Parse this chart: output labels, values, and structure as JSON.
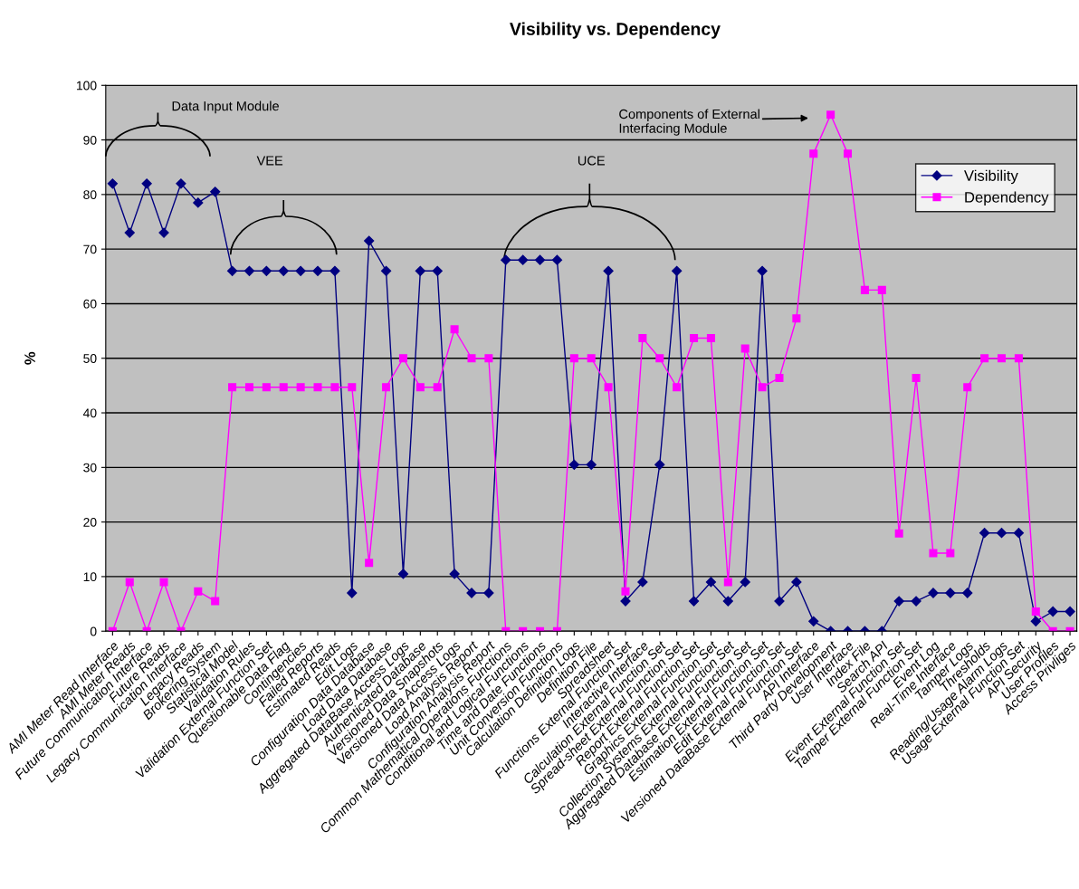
{
  "chart_data": {
    "type": "line",
    "title": "Visibility vs. Dependency",
    "ylabel": "%",
    "categories": [
      "AMI Meter Read Interface",
      "AMI Meter Reads",
      "Future Communication Interface",
      "Future Reads",
      "Legacy Communication Interface",
      "Legacy Reads",
      "Brokering System",
      "Statistical Model",
      "Validation Rules",
      "Validation External Function Set",
      "Questionable Data Flag",
      "Contingencies",
      "Failed Reports",
      "Estimated Reads",
      "Edit Logs",
      "Configuration Data Database",
      "Load Data Database",
      "Aggregated DataBase Access Logs",
      "Authenticated Database",
      "Versioned Data Snapshots",
      "Versioned Data Access Logs",
      "Load Analysis Report",
      "Configuration Analysis Report",
      "Common Mathematical Operations Functions",
      "Conditional and Logical Functions",
      "Time and Date Functions",
      "Unit Conversion Functions",
      "Calculation Definition Logs",
      "Definition File",
      "Spreadsheet",
      "Functions External Function Set",
      "Interactive Interface",
      "Calculation External Function Set",
      "Spread-sheet External Function Set",
      "Report External Function Set",
      "Graphics External Function Set",
      "Collection Systems External Function Set",
      "Aggregated Database External Function Set",
      "Estimation External Function Set",
      "Edit External Function Set",
      "Versioned DataBase External Function Set",
      "API Interface",
      "Third Party Development",
      "User Interface",
      "Index File",
      "Search API",
      "Event External Function Set",
      "Tamper External Function Set",
      "Event Log",
      "Real-Time Interface",
      "Tamper Logs",
      "Thresholds",
      "Reading/Usage Alarm Logs",
      "Usage External Function Set",
      "API Security",
      "User Profiles",
      "Access Privliges"
    ],
    "series": [
      {
        "name": "Visibility",
        "color": "#000080",
        "marker": "diamond",
        "values": [
          82,
          73,
          82,
          73,
          82,
          78.5,
          80.5,
          66,
          66,
          66,
          66,
          66,
          66,
          66,
          7,
          71.5,
          66,
          10.5,
          66,
          66,
          10.5,
          7,
          7,
          68,
          68,
          68,
          68,
          30.5,
          30.5,
          66,
          5.5,
          9,
          30.5,
          66,
          5.5,
          9,
          5.5,
          9,
          66,
          5.5,
          9,
          1.8,
          0,
          0,
          0,
          0,
          5.5,
          5.5,
          7,
          7,
          7,
          18,
          18,
          18,
          1.8,
          3.6,
          3.6
        ]
      },
      {
        "name": "Dependency",
        "color": "#ff00ff",
        "marker": "square",
        "values": [
          0,
          9,
          0,
          9,
          0,
          7.3,
          5.5,
          44.7,
          44.7,
          44.7,
          44.7,
          44.7,
          44.7,
          44.7,
          44.7,
          12.5,
          44.7,
          50,
          44.7,
          44.7,
          55.3,
          50,
          50,
          0,
          0,
          0,
          0,
          50,
          50,
          44.7,
          7.3,
          53.7,
          50,
          44.7,
          53.7,
          53.7,
          9,
          51.8,
          44.7,
          46.4,
          57.3,
          87.5,
          94.6,
          87.5,
          62.5,
          62.5,
          17.9,
          46.4,
          14.3,
          14.3,
          44.7,
          50,
          50,
          50,
          3.6,
          0,
          0
        ]
      }
    ],
    "ylim": [
      0,
      100
    ],
    "yticks": [
      0,
      10,
      20,
      30,
      40,
      50,
      60,
      70,
      80,
      90,
      100
    ],
    "grid": "y",
    "legend": "top right",
    "annotations": [
      "Data Input Module",
      "VEE",
      "UCE",
      "Components of External\nInterfacing Module"
    ]
  }
}
